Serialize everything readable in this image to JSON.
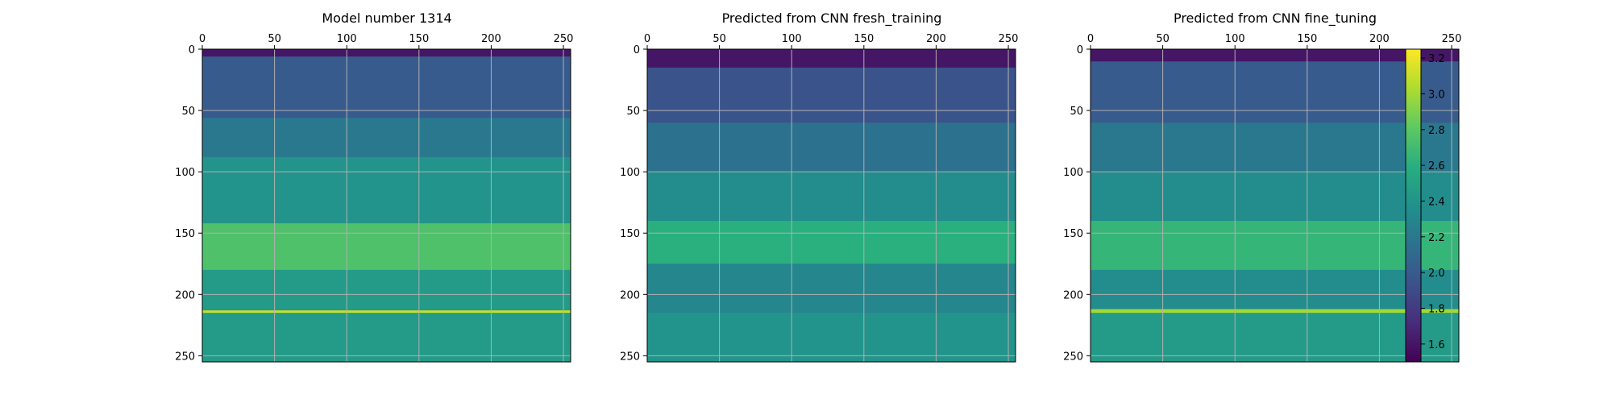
{
  "chart_data": [
    {
      "type": "heatmap",
      "title": "Model number 1314",
      "x_ticks": [
        "0",
        "50",
        "100",
        "150",
        "200",
        "250"
      ],
      "y_ticks": [
        "0",
        "50",
        "100",
        "150",
        "200",
        "250"
      ],
      "xlim": [
        0,
        255
      ],
      "ylim": [
        255,
        0
      ],
      "grid": true,
      "x_axis_position": "top",
      "value_range": [
        1.5,
        3.25
      ],
      "layers": [
        {
          "depth": [
            0,
            6
          ],
          "value": 1.6
        },
        {
          "depth": [
            6,
            56
          ],
          "value": 2.0
        },
        {
          "depth": [
            56,
            88
          ],
          "value": 2.2
        },
        {
          "depth": [
            88,
            142
          ],
          "value": 2.4
        },
        {
          "depth": [
            142,
            180
          ],
          "value": 2.75
        },
        {
          "depth": [
            180,
            213
          ],
          "value": 2.45
        },
        {
          "depth": [
            213,
            215
          ],
          "value": 3.1
        },
        {
          "depth": [
            215,
            255
          ],
          "value": 2.45
        }
      ]
    },
    {
      "type": "heatmap",
      "title": "Predicted from CNN fresh_training",
      "x_ticks": [
        "0",
        "50",
        "100",
        "150",
        "200",
        "250"
      ],
      "y_ticks": [
        "0",
        "50",
        "100",
        "150",
        "200",
        "250"
      ],
      "xlim": [
        0,
        255
      ],
      "ylim": [
        255,
        0
      ],
      "grid": true,
      "x_axis_position": "top",
      "value_range": [
        1.5,
        3.25
      ],
      "layers": [
        {
          "depth": [
            0,
            15
          ],
          "value": 1.6
        },
        {
          "depth": [
            15,
            60
          ],
          "value": 1.95
        },
        {
          "depth": [
            60,
            100
          ],
          "value": 2.15
        },
        {
          "depth": [
            100,
            140
          ],
          "value": 2.35
        },
        {
          "depth": [
            140,
            175
          ],
          "value": 2.6
        },
        {
          "depth": [
            175,
            215
          ],
          "value": 2.3
        },
        {
          "depth": [
            215,
            255
          ],
          "value": 2.4
        }
      ]
    },
    {
      "type": "heatmap",
      "title": "Predicted from CNN fine_tuning",
      "x_ticks": [
        "0",
        "50",
        "100",
        "150",
        "200",
        "250"
      ],
      "y_ticks": [
        "0",
        "50",
        "100",
        "150",
        "200",
        "250"
      ],
      "xlim": [
        0,
        255
      ],
      "ylim": [
        255,
        0
      ],
      "grid": true,
      "x_axis_position": "top",
      "value_range": [
        1.5,
        3.25
      ],
      "layers": [
        {
          "depth": [
            0,
            10
          ],
          "value": 1.6
        },
        {
          "depth": [
            10,
            60
          ],
          "value": 2.0
        },
        {
          "depth": [
            60,
            100
          ],
          "value": 2.2
        },
        {
          "depth": [
            100,
            140
          ],
          "value": 2.35
        },
        {
          "depth": [
            140,
            180
          ],
          "value": 2.65
        },
        {
          "depth": [
            180,
            212
          ],
          "value": 2.35
        },
        {
          "depth": [
            212,
            215
          ],
          "value": 3.0
        },
        {
          "depth": [
            215,
            255
          ],
          "value": 2.45
        }
      ]
    }
  ],
  "colorbar": {
    "ticks": [
      "1.6",
      "1.8",
      "2.0",
      "2.2",
      "2.4",
      "2.6",
      "2.8",
      "3.0",
      "3.2"
    ],
    "tick_values": [
      1.6,
      1.8,
      2.0,
      2.2,
      2.4,
      2.6,
      2.8,
      3.0,
      3.2
    ],
    "range": [
      1.5,
      3.25
    ],
    "colormap": "viridis"
  }
}
